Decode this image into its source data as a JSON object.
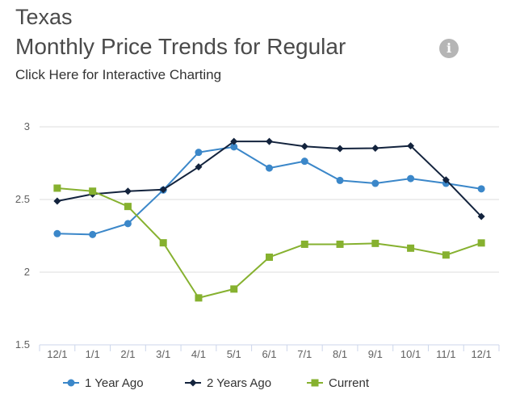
{
  "header": {
    "state": "Texas",
    "title": "Monthly Price Trends for Regular",
    "link_text": "Click Here for Interactive Charting",
    "info_icon": "info-icon"
  },
  "chart_data": {
    "type": "line",
    "categories": [
      "12/1",
      "1/1",
      "2/1",
      "3/1",
      "4/1",
      "5/1",
      "6/1",
      "7/1",
      "8/1",
      "9/1",
      "10/1",
      "11/1",
      "12/1"
    ],
    "y_ticks": [
      "1.5",
      "2",
      "2.5",
      "3"
    ],
    "ylim": [
      1.5,
      3
    ],
    "grid": true,
    "legend_position": "bottom",
    "series": [
      {
        "name": "1 Year Ago",
        "color": "#3b87c9",
        "marker": "circle",
        "values": [
          2.265,
          2.259,
          2.334,
          2.565,
          2.824,
          2.862,
          2.716,
          2.763,
          2.631,
          2.611,
          2.644,
          2.611,
          2.573
        ]
      },
      {
        "name": "2 Years Ago",
        "color": "#13233d",
        "marker": "diamond",
        "values": [
          2.489,
          2.537,
          2.557,
          2.568,
          2.724,
          2.899,
          2.899,
          2.865,
          2.85,
          2.853,
          2.869,
          2.635,
          2.383
        ]
      },
      {
        "name": "Current",
        "color": "#86b12f",
        "marker": "square",
        "values": [
          2.578,
          2.557,
          2.452,
          2.202,
          1.823,
          1.884,
          2.103,
          2.192,
          2.192,
          2.198,
          2.165,
          2.118,
          2.201
        ]
      }
    ]
  }
}
